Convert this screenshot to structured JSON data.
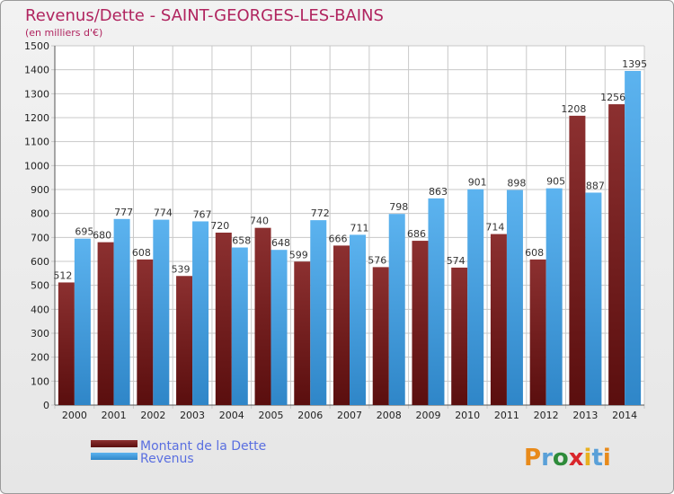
{
  "chart_data": {
    "type": "bar",
    "title": "Revenus/Dette - SAINT-GEORGES-LES-BAINS",
    "subtitle": "(en milliers d'€)",
    "categories": [
      "2000",
      "2001",
      "2002",
      "2003",
      "2004",
      "2005",
      "2006",
      "2007",
      "2008",
      "2009",
      "2010",
      "2011",
      "2012",
      "2013",
      "2014"
    ],
    "series": [
      {
        "name": "Montant de la Dette",
        "color": "#7a1f1f",
        "values": [
          512,
          680,
          608,
          539,
          720,
          740,
          599,
          666,
          576,
          686,
          574,
          714,
          608,
          1208,
          1256
        ],
        "labels": [
          "512",
          "680",
          "608",
          "539",
          "720",
          "740",
          "599",
          "666",
          "576",
          "686",
          "574",
          "714",
          "608",
          "1208",
          "1256"
        ]
      },
      {
        "name": "Revenus",
        "color": "#4aa3e8",
        "values": [
          695,
          777,
          774,
          767,
          658,
          648,
          772,
          711,
          798,
          863,
          901,
          898,
          905,
          887,
          1395
        ],
        "labels": [
          "695",
          "777",
          "774",
          "767",
          "658",
          "648",
          "772",
          "711",
          "798",
          "863",
          "901",
          "898",
          "905",
          "887",
          "1395"
        ]
      }
    ],
    "ylim": [
      0,
      1500
    ],
    "yticks": [
      "0",
      "100",
      "200",
      "300",
      "400",
      "500",
      "600",
      "700",
      "800",
      "900",
      "1000",
      "1100",
      "1200",
      "1300",
      "1400",
      "1500"
    ],
    "grid": true,
    "legend": "bottom-left"
  },
  "logo": {
    "letters": [
      "P",
      "r",
      "o",
      "x",
      "i",
      "t",
      "i"
    ],
    "colors": [
      "#e88a1a",
      "#5aa0d8",
      "#2e8b3a",
      "#d9262b",
      "#e8b020",
      "#5aa0d8",
      "#e88a1a"
    ]
  }
}
